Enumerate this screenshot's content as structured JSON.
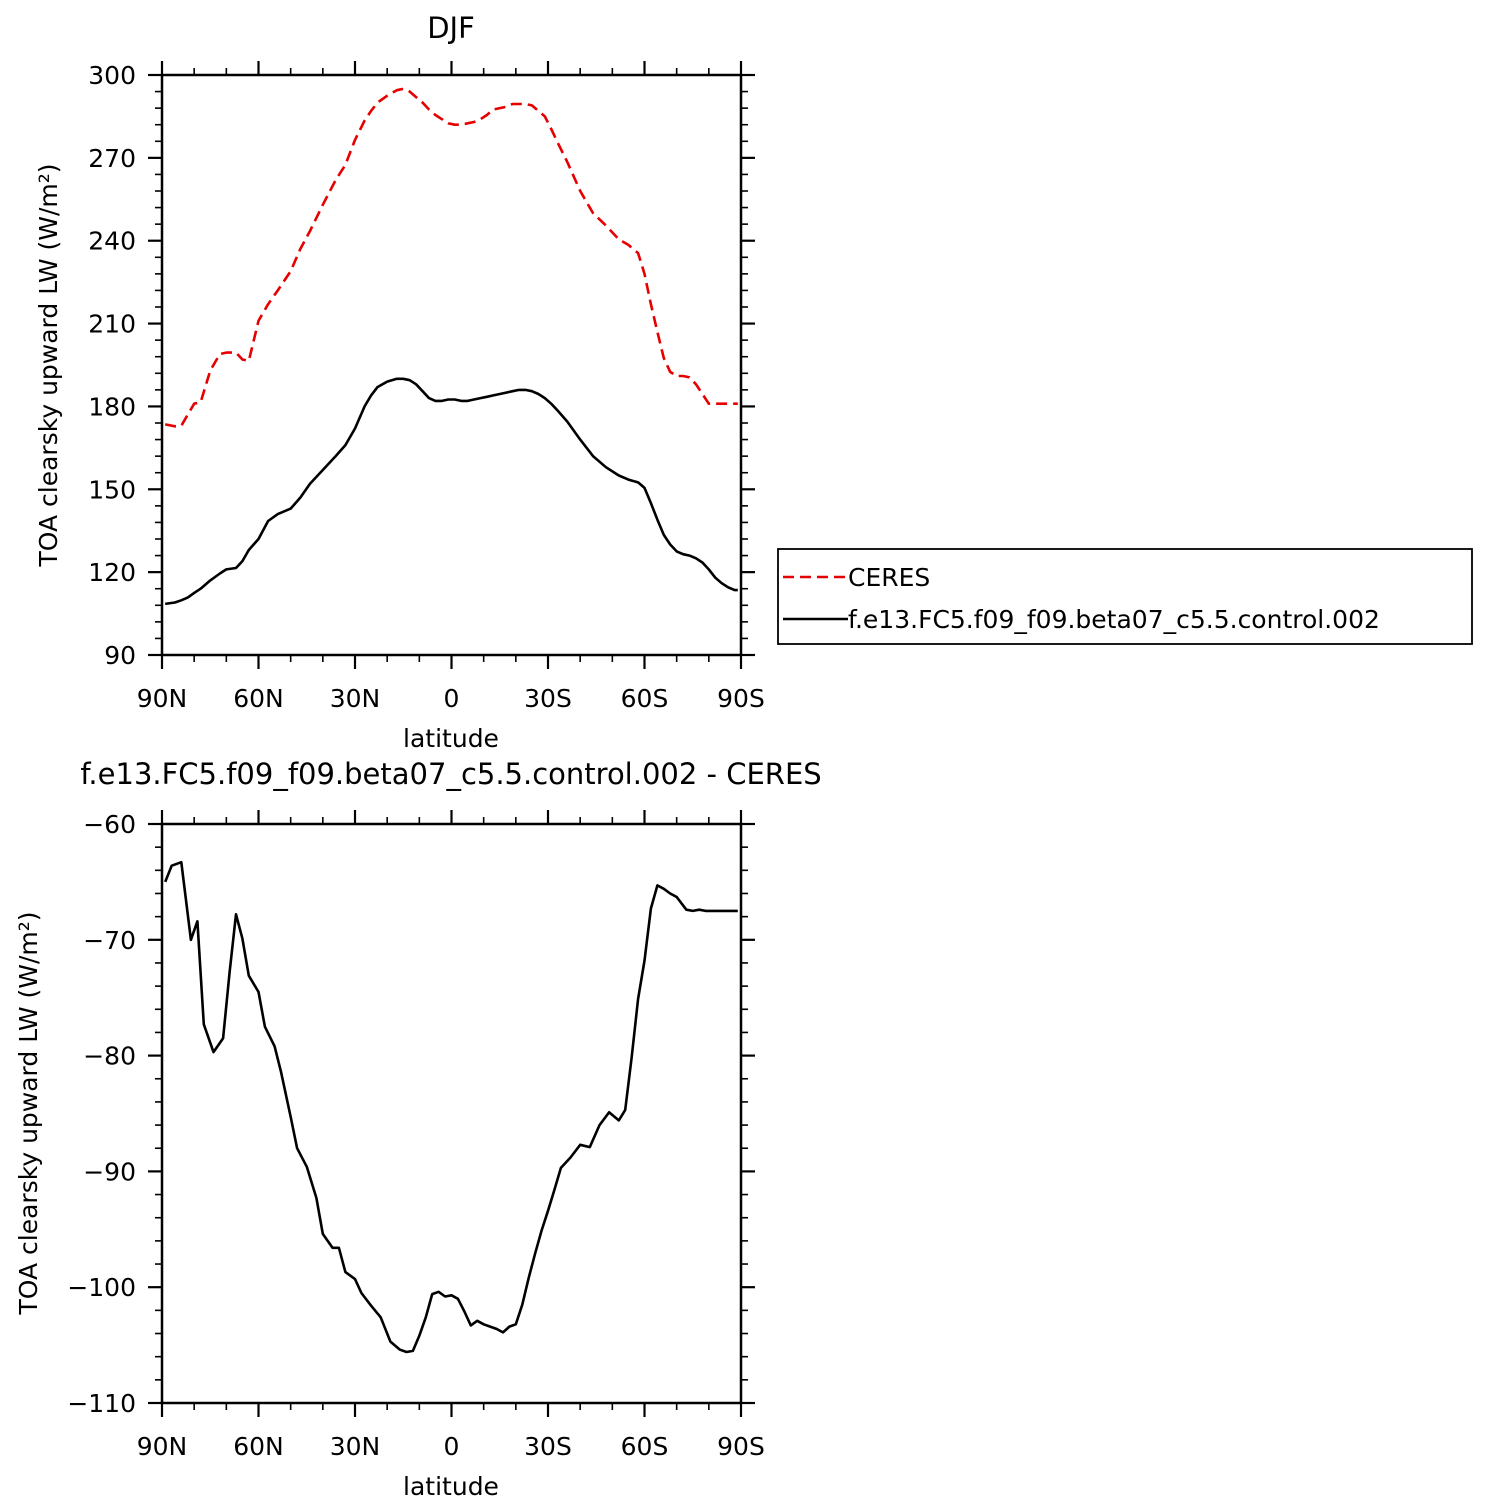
{
  "chart_data": [
    {
      "type": "line",
      "title": "DJF",
      "xlabel": "latitude",
      "ylabel": "TOA clearsky upward LW (W/m²)",
      "xlim": [
        90,
        -90
      ],
      "ylim": [
        90,
        300
      ],
      "x_tick_values": [
        90,
        60,
        30,
        0,
        -30,
        -60,
        -90
      ],
      "x_tick_labels": [
        "90N",
        "60N",
        "30N",
        "0",
        "30S",
        "60S",
        "90S"
      ],
      "y_ticks": [
        90,
        120,
        150,
        180,
        210,
        240,
        270,
        300
      ],
      "grid": false,
      "legend_position": "right",
      "series": [
        {
          "name": "CERES",
          "color": "#e60000",
          "dash": true,
          "x": [
            89,
            86,
            84,
            82,
            80,
            78,
            75,
            72,
            70,
            67,
            65,
            63,
            60,
            57,
            54,
            50,
            47,
            44,
            40,
            36,
            33,
            30,
            27,
            25,
            23,
            20,
            17,
            15,
            13,
            11,
            9,
            7,
            5,
            3,
            1,
            -1,
            -3,
            -5,
            -7,
            -9,
            -11,
            -13,
            -15,
            -17,
            -19,
            -21,
            -23,
            -25,
            -27,
            -29,
            -31,
            -33,
            -36,
            -40,
            -44,
            -48,
            -52,
            -55,
            -58,
            -60,
            -62,
            -64,
            -66,
            -68,
            -70,
            -72,
            -74,
            -76,
            -78,
            -80,
            -82,
            -84,
            -86,
            -88,
            -89
          ],
          "values": [
            173.5,
            172.8,
            173.0,
            177.0,
            181.0,
            181.5,
            193.0,
            199.0,
            199.5,
            199.5,
            197.0,
            196.5,
            211.0,
            217.0,
            222.0,
            229.0,
            237.0,
            243.5,
            253.0,
            262.0,
            267.5,
            276.5,
            283.5,
            287.0,
            290.0,
            292.5,
            294.5,
            295.0,
            294.0,
            292.0,
            290.0,
            287.5,
            285.5,
            284.0,
            282.5,
            282.0,
            282.0,
            282.5,
            283.0,
            284.0,
            285.5,
            287.5,
            288.0,
            288.5,
            289.5,
            289.5,
            289.5,
            289.0,
            287.0,
            285.0,
            280.5,
            275.5,
            268.5,
            258.0,
            250.0,
            245.5,
            240.5,
            238.5,
            235.5,
            228.0,
            217.0,
            207.0,
            197.5,
            192.5,
            191.0,
            191.0,
            190.5,
            188.0,
            184.5,
            181.0,
            181.0,
            181.0,
            181.0,
            181.0,
            181.0
          ]
        },
        {
          "name": "f.e13.FC5.f09_f09.beta07_c5.5.control.002",
          "color": "#000000",
          "dash": false,
          "x": [
            89,
            86,
            84,
            82,
            80,
            78,
            75,
            72,
            70,
            67,
            65,
            63,
            60,
            57,
            54,
            50,
            47,
            44,
            40,
            36,
            33,
            30,
            27,
            25,
            23,
            20,
            17,
            15,
            13,
            11,
            9,
            7,
            5,
            3,
            1,
            -1,
            -3,
            -5,
            -7,
            -9,
            -11,
            -13,
            -15,
            -17,
            -19,
            -21,
            -23,
            -25,
            -27,
            -29,
            -31,
            -33,
            -36,
            -40,
            -44,
            -48,
            -52,
            -55,
            -58,
            -60,
            -62,
            -64,
            -66,
            -68,
            -70,
            -72,
            -74,
            -76,
            -78,
            -80,
            -82,
            -84,
            -86,
            -88,
            -89
          ],
          "values": [
            108.5,
            109.0,
            109.8,
            110.8,
            112.5,
            114.0,
            117.0,
            119.5,
            121.0,
            121.5,
            124.0,
            128.0,
            132.0,
            138.5,
            141.0,
            143.0,
            147.0,
            152.0,
            157.0,
            162.0,
            166.0,
            172.0,
            180.0,
            184.0,
            187.0,
            189.0,
            190.0,
            190.0,
            189.5,
            188.0,
            185.5,
            183.0,
            182.0,
            182.0,
            182.5,
            182.5,
            182.0,
            182.0,
            182.5,
            183.0,
            183.5,
            184.0,
            184.5,
            185.0,
            185.5,
            186.0,
            186.0,
            185.5,
            184.5,
            183.0,
            181.0,
            178.5,
            174.5,
            168.0,
            162.0,
            158.0,
            155.0,
            153.5,
            152.5,
            150.5,
            145.0,
            139.0,
            133.5,
            130.0,
            127.5,
            126.5,
            126.0,
            125.0,
            123.5,
            121.0,
            118.0,
            116.0,
            114.5,
            113.5,
            113.5
          ]
        }
      ]
    },
    {
      "type": "line",
      "title": "f.e13.FC5.f09_f09.beta07_c5.5.control.002  -  CERES",
      "xlabel": "latitude",
      "ylabel": "TOA clearsky upward LW (W/m²)",
      "xlim": [
        90,
        -90
      ],
      "ylim": [
        -110,
        -60
      ],
      "x_tick_values": [
        90,
        60,
        30,
        0,
        -30,
        -60,
        -90
      ],
      "x_tick_labels": [
        "90N",
        "60N",
        "30N",
        "0",
        "30S",
        "60S",
        "90S"
      ],
      "y_ticks": [
        -110,
        -100,
        -90,
        -80,
        -70,
        -60
      ],
      "grid": false,
      "series": [
        {
          "color": "#000000",
          "dash": false,
          "x": [
            89,
            87,
            84,
            81,
            79,
            77,
            74,
            71,
            69,
            67,
            65,
            63,
            60,
            58,
            55,
            53,
            50,
            48,
            45,
            42,
            40,
            37,
            35,
            33,
            30,
            28,
            25,
            22,
            19,
            16,
            14,
            12,
            10,
            8,
            6,
            4,
            2,
            0,
            -2,
            -4,
            -6,
            -8,
            -10,
            -12,
            -14,
            -16,
            -18,
            -20,
            -22,
            -24,
            -26,
            -28,
            -30,
            -32,
            -34,
            -37,
            -40,
            -43,
            -46,
            -49,
            -52,
            -54,
            -56,
            -58,
            -60,
            -62,
            -64,
            -66,
            -68,
            -70,
            -73,
            -75,
            -77,
            -79,
            -81,
            -83,
            -85,
            -87,
            -89
          ],
          "values": [
            -65.0,
            -63.6,
            -63.3,
            -70.0,
            -68.4,
            -77.3,
            -79.7,
            -78.5,
            -72.8,
            -67.8,
            -69.9,
            -73.1,
            -74.5,
            -77.5,
            -79.2,
            -81.4,
            -85.3,
            -88.0,
            -89.6,
            -92.3,
            -95.4,
            -96.6,
            -96.6,
            -98.7,
            -99.3,
            -100.5,
            -101.6,
            -102.6,
            -104.7,
            -105.4,
            -105.6,
            -105.5,
            -104.2,
            -102.6,
            -100.6,
            -100.4,
            -100.8,
            -100.7,
            -101.0,
            -102.1,
            -103.3,
            -102.9,
            -103.2,
            -103.4,
            -103.6,
            -103.9,
            -103.4,
            -103.2,
            -101.5,
            -99.2,
            -97.1,
            -95.1,
            -93.4,
            -91.6,
            -89.7,
            -88.8,
            -87.7,
            -87.9,
            -86.0,
            -84.9,
            -85.6,
            -84.7,
            -80.2,
            -75.1,
            -71.8,
            -67.3,
            -65.3,
            -65.6,
            -66.0,
            -66.3,
            -67.4,
            -67.5,
            -67.4,
            -67.5,
            -67.5,
            -67.5,
            -67.5,
            -67.5,
            -67.5
          ]
        }
      ]
    }
  ]
}
